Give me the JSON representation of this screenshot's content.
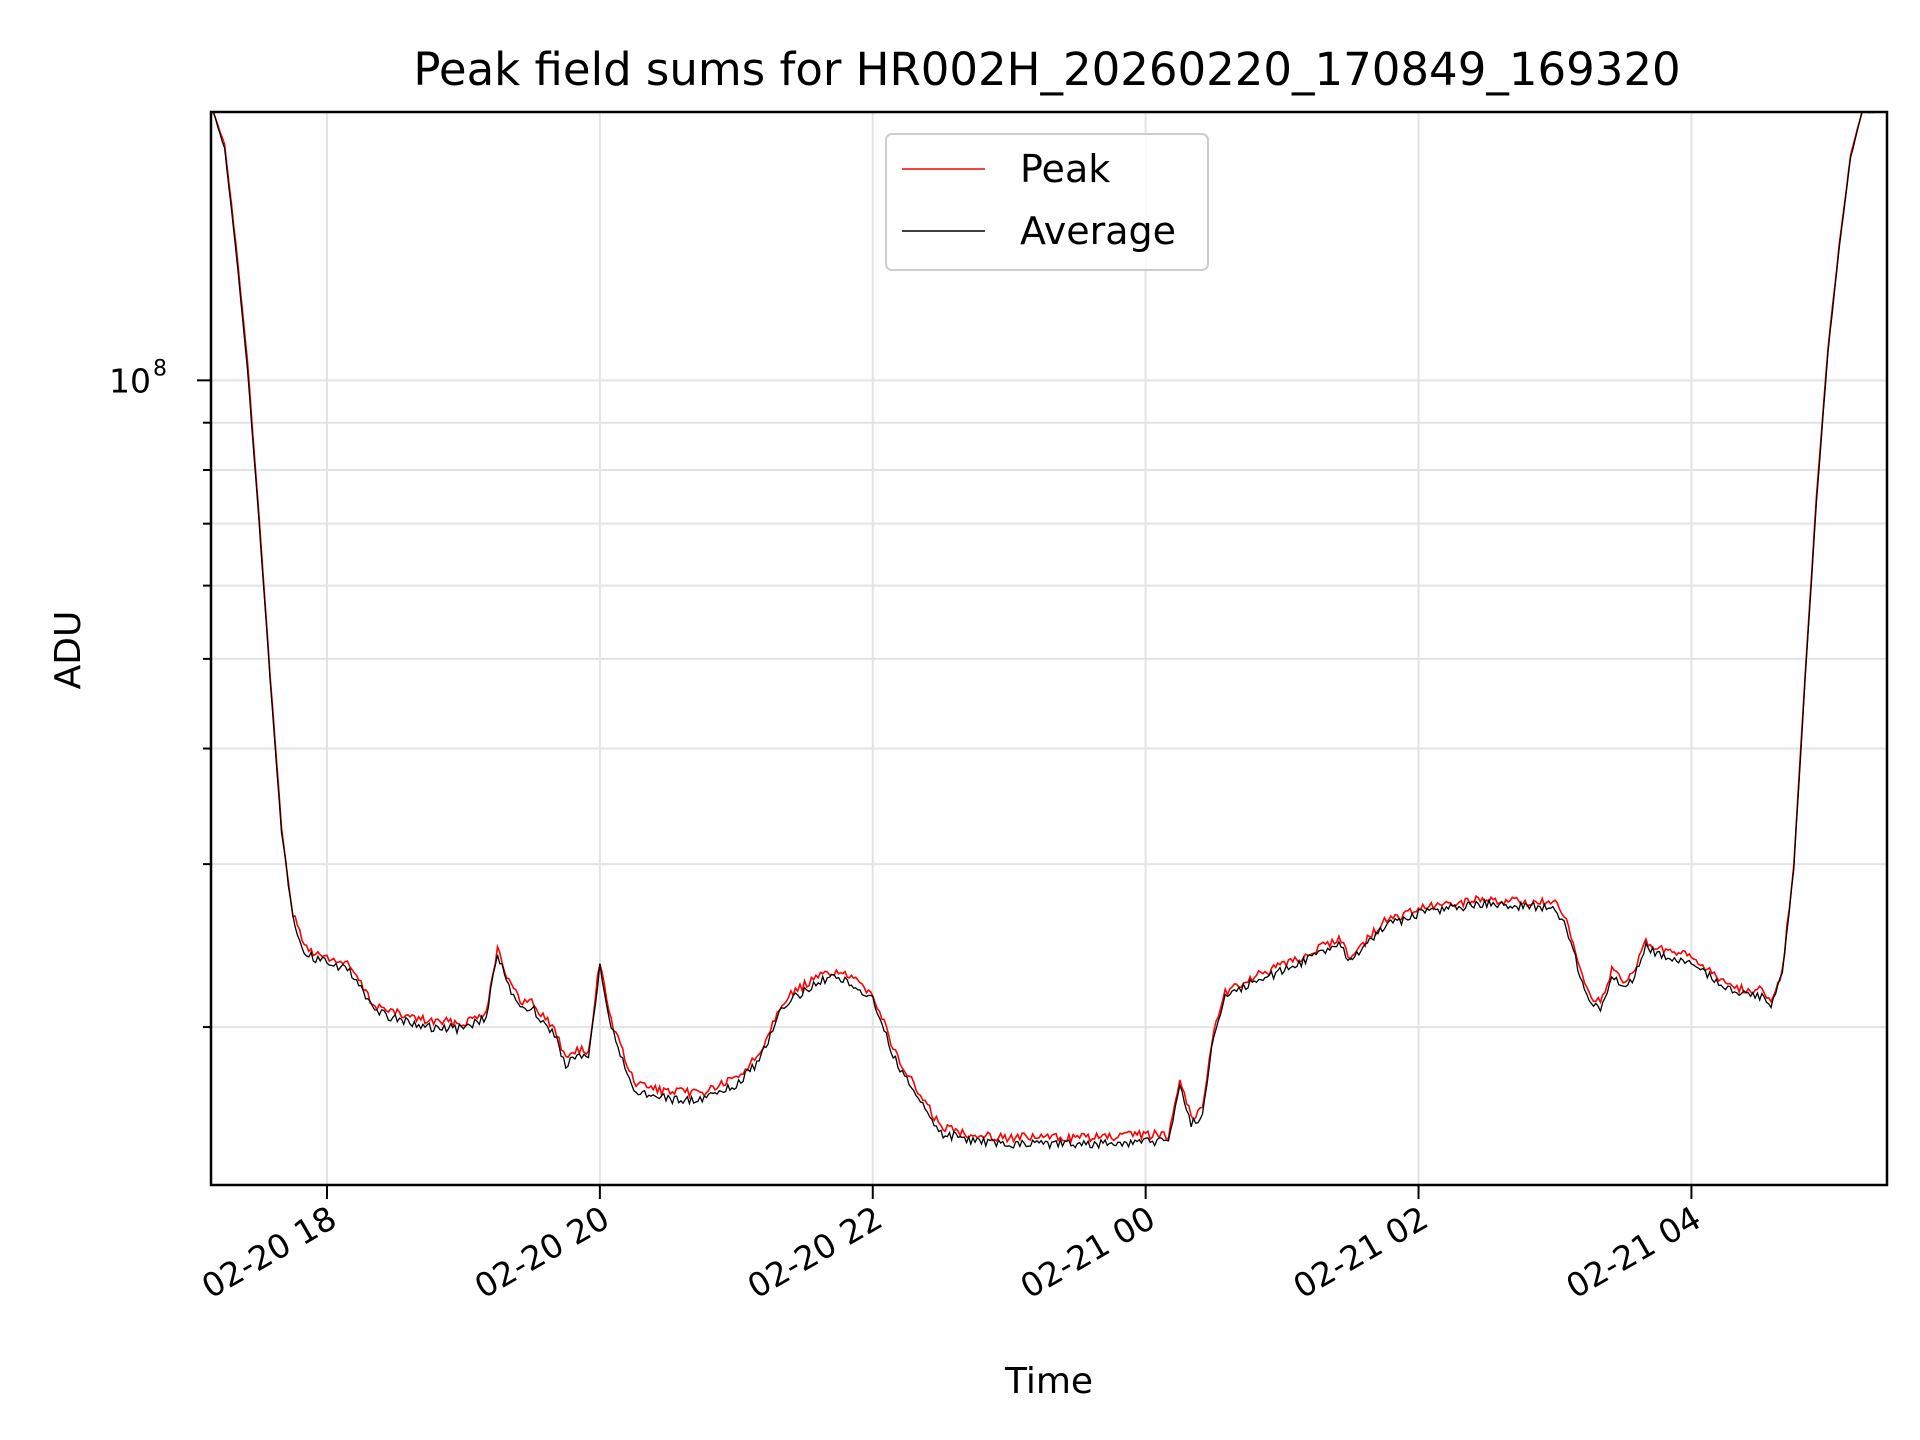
{
  "chart_data": {
    "type": "line",
    "title": "Peak field sums for HR002H_20260220_170849_169320",
    "xlabel": "Time",
    "ylabel": "ADU",
    "y_scale": "log",
    "ylim": [
      13500000,
      195000000
    ],
    "xlim": [
      "02-20 17:09",
      "02-21 05:26"
    ],
    "x_ticks": [
      {
        "value": "02-20 18:00",
        "label": "02-20 18"
      },
      {
        "value": "02-20 20:00",
        "label": "02-20 20"
      },
      {
        "value": "02-20 22:00",
        "label": "02-20 22"
      },
      {
        "value": "02-21 00:00",
        "label": "02-21 00"
      },
      {
        "value": "02-21 02:00",
        "label": "02-21 02"
      },
      {
        "value": "02-21 04:00",
        "label": "02-21 04"
      }
    ],
    "y_ticks": [
      {
        "value": 100000000,
        "label_base": "10",
        "label_exp": "8"
      }
    ],
    "grid": true,
    "legend": {
      "placement": "upper-center"
    },
    "series": [
      {
        "name": "Peak",
        "color": "#ff0000",
        "x": [
          "02-20 17:10",
          "02-20 17:15",
          "02-20 17:20",
          "02-20 17:25",
          "02-20 17:30",
          "02-20 17:35",
          "02-20 17:40",
          "02-20 17:45",
          "02-20 17:50",
          "02-20 17:55",
          "02-20 18:00",
          "02-20 18:10",
          "02-20 18:20",
          "02-20 18:30",
          "02-20 18:45",
          "02-20 19:00",
          "02-20 19:10",
          "02-20 19:15",
          "02-20 19:20",
          "02-20 19:25",
          "02-20 19:30",
          "02-20 19:40",
          "02-20 19:45",
          "02-20 19:50",
          "02-20 19:55",
          "02-20 20:00",
          "02-20 20:05",
          "02-20 20:15",
          "02-20 20:30",
          "02-20 20:45",
          "02-20 21:00",
          "02-20 21:10",
          "02-20 21:20",
          "02-20 21:30",
          "02-20 21:40",
          "02-20 21:45",
          "02-20 22:00",
          "02-20 22:10",
          "02-20 22:20",
          "02-20 22:30",
          "02-20 22:45",
          "02-20 23:00",
          "02-20 23:15",
          "02-20 23:30",
          "02-20 23:45",
          "02-21 00:00",
          "02-21 00:10",
          "02-21 00:15",
          "02-21 00:20",
          "02-21 00:25",
          "02-21 00:30",
          "02-21 00:35",
          "02-21 00:45",
          "02-21 01:00",
          "02-21 01:15",
          "02-21 01:25",
          "02-21 01:30",
          "02-21 01:45",
          "02-21 02:00",
          "02-21 02:15",
          "02-21 02:30",
          "02-21 02:45",
          "02-21 03:00",
          "02-21 03:05",
          "02-21 03:10",
          "02-21 03:15",
          "02-21 03:20",
          "02-21 03:25",
          "02-21 03:30",
          "02-21 03:35",
          "02-21 03:40",
          "02-21 03:45",
          "02-21 04:00",
          "02-21 04:10",
          "02-21 04:20",
          "02-21 04:30",
          "02-21 04:35",
          "02-21 04:40",
          "02-21 04:45",
          "02-21 04:50",
          "02-21 04:55",
          "02-21 05:00",
          "02-21 05:05",
          "02-21 05:10",
          "02-21 05:15",
          "02-21 05:20",
          "02-21 05:25"
        ],
        "y": [
          195000000,
          180000000,
          140000000,
          105000000,
          72000000,
          48000000,
          33000000,
          26500000,
          24500000,
          24000000,
          23800000,
          23300000,
          21200000,
          20700000,
          20300000,
          20200000,
          20800000,
          24400000,
          22400000,
          21300000,
          21300000,
          19900000,
          18500000,
          19000000,
          18700000,
          23600000,
          20300000,
          17400000,
          17000000,
          17000000,
          17600000,
          18700000,
          21300000,
          22200000,
          22900000,
          23000000,
          21800000,
          18700000,
          17000000,
          15600000,
          15300000,
          15200000,
          15200000,
          15200000,
          15200000,
          15300000,
          15300000,
          17600000,
          16000000,
          16300000,
          20000000,
          21800000,
          22500000,
          23300000,
          24200000,
          25000000,
          23800000,
          26000000,
          26800000,
          27200000,
          27500000,
          27300000,
          27200000,
          26000000,
          23500000,
          21700000,
          21300000,
          23000000,
          22400000,
          23000000,
          24700000,
          24300000,
          23800000,
          22800000,
          22000000,
          21900000,
          21500000,
          23000000,
          30000000,
          48000000,
          75000000,
          108000000,
          140000000,
          175000000,
          195000000,
          195000000,
          195000000
        ]
      },
      {
        "name": "Average",
        "color": "#000000",
        "x": [
          "02-20 17:10",
          "02-20 17:15",
          "02-20 17:20",
          "02-20 17:25",
          "02-20 17:30",
          "02-20 17:35",
          "02-20 17:40",
          "02-20 17:45",
          "02-20 17:50",
          "02-20 17:55",
          "02-20 18:00",
          "02-20 18:10",
          "02-20 18:20",
          "02-20 18:30",
          "02-20 18:45",
          "02-20 19:00",
          "02-20 19:10",
          "02-20 19:15",
          "02-20 19:20",
          "02-20 19:25",
          "02-20 19:30",
          "02-20 19:40",
          "02-20 19:45",
          "02-20 19:50",
          "02-20 19:55",
          "02-20 20:00",
          "02-20 20:05",
          "02-20 20:15",
          "02-20 20:30",
          "02-20 20:45",
          "02-20 21:00",
          "02-20 21:10",
          "02-20 21:20",
          "02-20 21:30",
          "02-20 21:40",
          "02-20 21:45",
          "02-20 22:00",
          "02-20 22:10",
          "02-20 22:20",
          "02-20 22:30",
          "02-20 22:45",
          "02-20 23:00",
          "02-20 23:15",
          "02-20 23:30",
          "02-20 23:45",
          "02-21 00:00",
          "02-21 00:10",
          "02-21 00:15",
          "02-21 00:20",
          "02-21 00:25",
          "02-21 00:30",
          "02-21 00:35",
          "02-21 00:45",
          "02-21 01:00",
          "02-21 01:15",
          "02-21 01:25",
          "02-21 01:30",
          "02-21 01:45",
          "02-21 02:00",
          "02-21 02:15",
          "02-21 02:30",
          "02-21 02:45",
          "02-21 03:00",
          "02-21 03:05",
          "02-21 03:10",
          "02-21 03:15",
          "02-21 03:20",
          "02-21 03:25",
          "02-21 03:30",
          "02-21 03:35",
          "02-21 03:40",
          "02-21 03:45",
          "02-21 04:00",
          "02-21 04:10",
          "02-21 04:20",
          "02-21 04:30",
          "02-21 04:35",
          "02-21 04:40",
          "02-21 04:45",
          "02-21 04:50",
          "02-21 04:55",
          "02-21 05:00",
          "02-21 05:05",
          "02-21 05:10",
          "02-21 05:15",
          "02-21 05:20",
          "02-21 05:25"
        ],
        "y": [
          195000000,
          178000000,
          138000000,
          103000000,
          71000000,
          47500000,
          32600000,
          26200000,
          24200000,
          23700000,
          23500000,
          23000000,
          20900000,
          20400000,
          20000000,
          19900000,
          20500000,
          24000000,
          22100000,
          21000000,
          21000000,
          19600000,
          18200000,
          18700000,
          18400000,
          23200000,
          20000000,
          17100000,
          16700000,
          16700000,
          17300000,
          18400000,
          21000000,
          21900000,
          22600000,
          22700000,
          21500000,
          18400000,
          16700000,
          15350000,
          15050000,
          14950000,
          14950000,
          14950000,
          14950000,
          15050000,
          15050000,
          17300000,
          15750000,
          16050000,
          19700000,
          21500000,
          22200000,
          23000000,
          23900000,
          24700000,
          23500000,
          25700000,
          26500000,
          26900000,
          27200000,
          27000000,
          26900000,
          25700000,
          23200000,
          21400000,
          21000000,
          22700000,
          22100000,
          22700000,
          24400000,
          24000000,
          23500000,
          22500000,
          21700000,
          21600000,
          21200000,
          22700000,
          29600000,
          47500000,
          74000000,
          107000000,
          139000000,
          174000000,
          195000000,
          195000000,
          195000000
        ]
      }
    ]
  }
}
